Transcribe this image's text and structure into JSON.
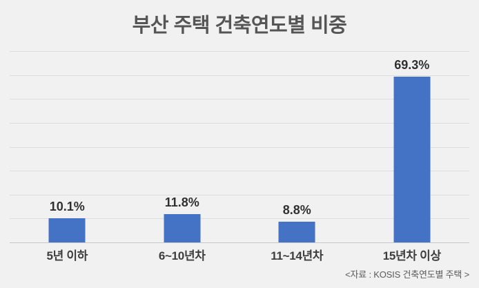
{
  "chart_data": {
    "type": "bar",
    "title": "부산 주택 건축연도별 비중",
    "categories": [
      "5년 이하",
      "6~10년차",
      "11~14년차",
      "15년차 이상"
    ],
    "values": [
      10.1,
      11.8,
      8.8,
      69.3
    ],
    "value_labels": [
      "10.1%",
      "11.8%",
      "8.8%",
      "69.3%"
    ],
    "xlabel": "",
    "ylabel": "",
    "ylim": [
      0,
      80
    ],
    "grid_interval": 10,
    "grid": true,
    "legend_position": "none",
    "bar_color": "#4472c4",
    "source_note": "<자료 : KOSIS 건축연도별 주택 >"
  },
  "colors": {
    "background": "#f1f1f2",
    "title_text": "#555555",
    "value_label_text": "#303030",
    "category_label_text": "#3d3d3d",
    "gridline": "#dcdcde",
    "axis_line": "#c7c8ca",
    "bar": "#4472c4",
    "source_text": "#5a5a5a"
  }
}
